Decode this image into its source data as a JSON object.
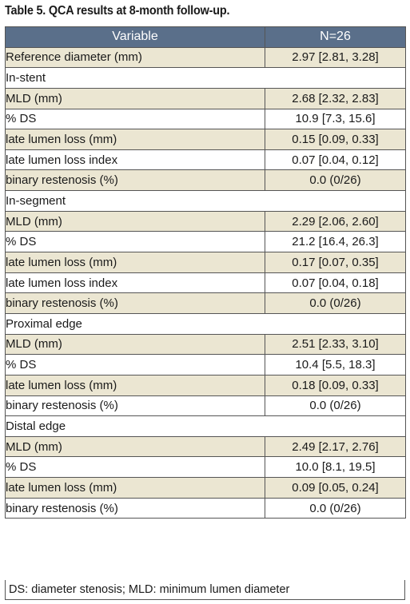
{
  "caption": "Table 5. QCA results at 8-month follow-up.",
  "header": {
    "variable": "Variable",
    "n": "N=26"
  },
  "reference": {
    "label": "Reference diameter (mm)",
    "value": "2.97 [2.81, 3.28]"
  },
  "sections": [
    {
      "title": "In-stent",
      "rows": [
        {
          "label": "MLD (mm)",
          "value": "2.68 [2.32, 2.83]"
        },
        {
          "label": "% DS",
          "value": "10.9 [7.3, 15.6]"
        },
        {
          "label": "late lumen loss (mm)",
          "value": "0.15 [0.09, 0.33]"
        },
        {
          "label": "late lumen loss index",
          "value": "0.07 [0.04, 0.12]"
        },
        {
          "label": "binary restenosis (%)",
          "value": "0.0 (0/26)"
        }
      ]
    },
    {
      "title": "In-segment",
      "rows": [
        {
          "label": "MLD (mm)",
          "value": "2.29 [2.06, 2.60]"
        },
        {
          "label": "% DS",
          "value": "21.2 [16.4, 26.3]"
        },
        {
          "label": "late lumen loss (mm)",
          "value": "0.17 [0.07, 0.35]"
        },
        {
          "label": "late lumen loss index",
          "value": "0.07 [0.04, 0.18]"
        },
        {
          "label": "binary restenosis (%)",
          "value": "0.0 (0/26)"
        }
      ]
    },
    {
      "title": "Proximal edge",
      "rows": [
        {
          "label": "MLD (mm)",
          "value": "2.51 [2.33, 3.10]"
        },
        {
          "label": "% DS",
          "value": "10.4 [5.5, 18.3]"
        },
        {
          "label": "late lumen loss (mm)",
          "value": "0.18 [0.09, 0.33]"
        },
        {
          "label": "binary restenosis (%)",
          "value": "0.0 (0/26)"
        }
      ]
    },
    {
      "title": "Distal edge",
      "rows": [
        {
          "label": "MLD (mm)",
          "value": "2.49 [2.17, 2.76]"
        },
        {
          "label": "% DS",
          "value": "10.0 [8.1, 19.5]"
        },
        {
          "label": "late lumen loss (mm)",
          "value": "0.09 [0.05, 0.24]"
        },
        {
          "label": "binary restenosis (%)",
          "value": "0.0 (0/26)"
        }
      ]
    }
  ],
  "footnote": "DS: diameter stenosis; MLD: minimum lumen diameter"
}
